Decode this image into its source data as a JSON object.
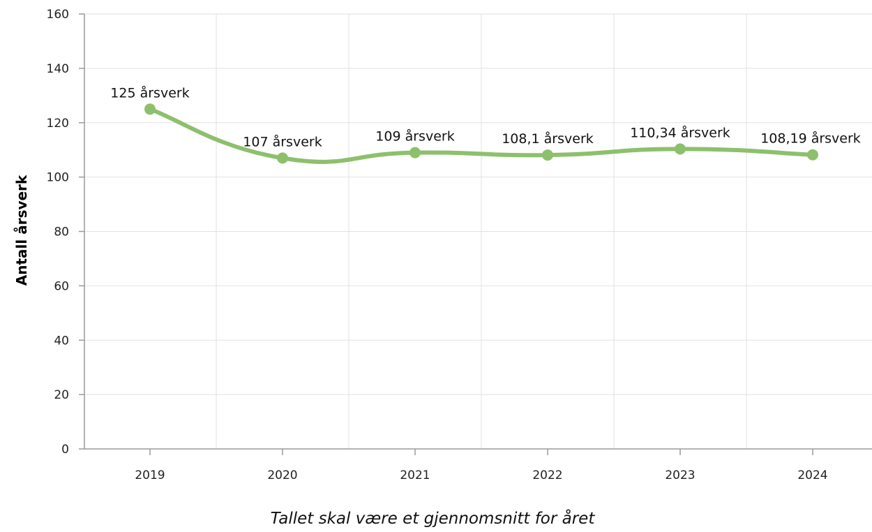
{
  "chart_data": {
    "type": "line",
    "categories": [
      "2019",
      "2020",
      "2021",
      "2022",
      "2023",
      "2024"
    ],
    "values": [
      125,
      107,
      109,
      108.1,
      110.34,
      108.19
    ],
    "data_labels": [
      "125 årsverk",
      "107 årsverk",
      "109 årsverk",
      "108,1 årsverk",
      "110,34 årsverk",
      "108,19 årsverk"
    ],
    "ylabel": "Antall årsverk",
    "ylim": [
      0,
      160
    ],
    "yticks": [
      0,
      20,
      40,
      60,
      80,
      100,
      120,
      140,
      160
    ],
    "caption": "Tallet skal være et gjennomsnitt for året",
    "line_color": "#8dc06d",
    "grid": true,
    "smooth": true
  }
}
